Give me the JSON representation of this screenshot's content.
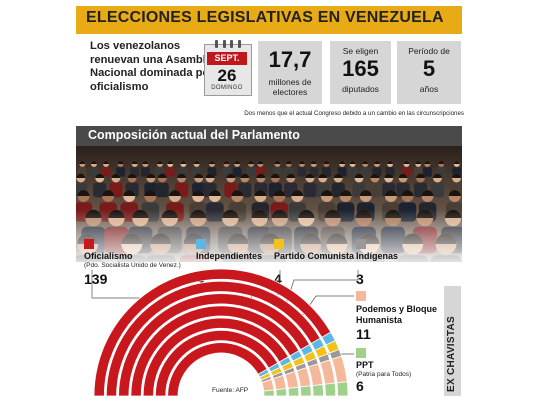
{
  "header": {
    "title": "ELECCIONES LEGISLATIVAS EN VENEZUELA",
    "accent_color": "#e8ab16"
  },
  "intro": {
    "text": "Los venezolanos renuevan una Asamblea Nacional dominada por el oficialismo"
  },
  "calendar": {
    "month": "SEPT.",
    "day": "26",
    "weekday": "DOMINGO"
  },
  "stats": [
    {
      "value": "17,7",
      "label": "millones de electores",
      "top_label": ""
    },
    {
      "value": "165",
      "label": "diputados",
      "top_label": "Se eligen"
    },
    {
      "value": "5",
      "label": "años",
      "top_label": "Período de"
    }
  ],
  "note": "Dos menos que el actual Congreso debido a un cambio en las circunscripciones",
  "composition": {
    "title": "Composición actual del Parlamento",
    "ex_label": "EX CHAVISTAS",
    "parties": [
      {
        "name": "Oficialismo",
        "sub": "(Pdo. Socialista Unido de Venez.)",
        "seats": "139",
        "color": "#c8171d"
      },
      {
        "name": "Independientes",
        "sub": "",
        "seats": "4",
        "color": "#5bb8e4"
      },
      {
        "name": "Partido Comunista",
        "sub": "",
        "seats": "4",
        "color": "#f2c21a"
      },
      {
        "name": "Indígenas",
        "sub": "",
        "seats": "3",
        "color": "#999999"
      },
      {
        "name": "Podemos y Bloque Humanista",
        "sub": "",
        "seats": "11",
        "color": "#f5b89a"
      },
      {
        "name": "PPT",
        "sub": "(Patria para Todos)",
        "seats": "6",
        "color": "#9fd18a"
      }
    ]
  },
  "source": "Fuente: AFP"
}
